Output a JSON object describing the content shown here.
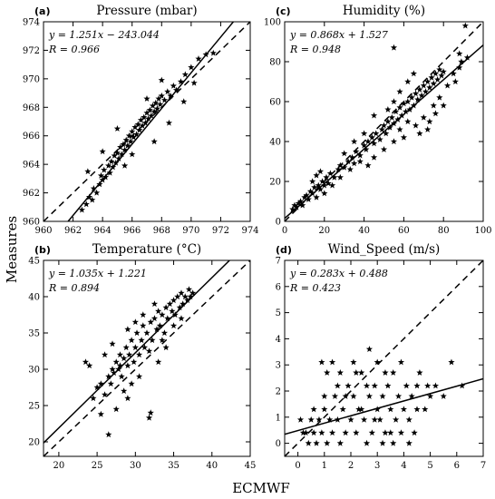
{
  "ylabel": "Measures",
  "xlabel": "ECMWF",
  "chart_data": [
    {
      "type": "scatter",
      "letter": "(a)",
      "title": "Pressure (mbar)",
      "xlim": [
        960,
        974
      ],
      "ylim": [
        960,
        974
      ],
      "xticks": [
        960,
        962,
        964,
        966,
        968,
        970,
        972,
        974
      ],
      "yticks": [
        960,
        962,
        964,
        966,
        968,
        970,
        972,
        974
      ],
      "fit": {
        "slope": 1.251,
        "intercept": -243.044
      },
      "equation": "y = 1.251x − 243.044",
      "r_text": "R = 0.966",
      "points": [
        [
          962.6,
          960.8
        ],
        [
          962.9,
          961.2
        ],
        [
          963.1,
          961.7
        ],
        [
          963.3,
          961.5
        ],
        [
          963.4,
          962.3
        ],
        [
          963.6,
          962.0
        ],
        [
          963.8,
          962.6
        ],
        [
          963.9,
          963.2
        ],
        [
          964.0,
          962.9
        ],
        [
          964.1,
          963.6
        ],
        [
          964.2,
          963.1
        ],
        [
          964.4,
          963.9
        ],
        [
          964.5,
          963.4
        ],
        [
          964.6,
          964.2
        ],
        [
          964.7,
          963.8
        ],
        [
          964.8,
          964.6
        ],
        [
          964.9,
          964.1
        ],
        [
          965.0,
          964.8
        ],
        [
          965.1,
          964.4
        ],
        [
          965.2,
          965.2
        ],
        [
          965.3,
          964.7
        ],
        [
          965.4,
          965.4
        ],
        [
          965.5,
          965.0
        ],
        [
          965.6,
          965.7
        ],
        [
          965.7,
          965.3
        ],
        [
          965.8,
          966.0
        ],
        [
          965.9,
          965.6
        ],
        [
          966.0,
          966.3
        ],
        [
          966.1,
          965.9
        ],
        [
          966.2,
          966.6
        ],
        [
          966.3,
          966.1
        ],
        [
          966.4,
          966.8
        ],
        [
          966.5,
          966.4
        ],
        [
          966.6,
          967.1
        ],
        [
          966.7,
          966.7
        ],
        [
          966.8,
          967.3
        ],
        [
          966.9,
          966.9
        ],
        [
          967.0,
          967.6
        ],
        [
          967.1,
          967.2
        ],
        [
          967.2,
          967.8
        ],
        [
          967.3,
          967.4
        ],
        [
          967.4,
          968.1
        ],
        [
          967.5,
          967.7
        ],
        [
          967.6,
          968.3
        ],
        [
          967.7,
          967.9
        ],
        [
          967.8,
          968.6
        ],
        [
          967.9,
          968.2
        ],
        [
          968.0,
          968.8
        ],
        [
          968.2,
          968.5
        ],
        [
          968.4,
          969.1
        ],
        [
          968.6,
          968.8
        ],
        [
          968.8,
          969.5
        ],
        [
          969.0,
          969.2
        ],
        [
          969.3,
          969.8
        ],
        [
          969.6,
          970.3
        ],
        [
          970.0,
          970.8
        ],
        [
          970.5,
          971.4
        ],
        [
          971.0,
          971.7
        ],
        [
          971.5,
          971.8
        ],
        [
          967.5,
          965.6
        ],
        [
          968.5,
          966.9
        ],
        [
          965.0,
          966.5
        ],
        [
          964.0,
          964.9
        ],
        [
          969.5,
          968.4
        ],
        [
          966.0,
          964.7
        ],
        [
          963.0,
          963.5
        ],
        [
          967.0,
          968.6
        ],
        [
          968.0,
          969.9
        ],
        [
          970.2,
          969.7
        ],
        [
          965.5,
          963.9
        ]
      ]
    },
    {
      "type": "scatter",
      "letter": "(c)",
      "title": "Humidity (%)",
      "xlim": [
        0,
        100
      ],
      "ylim": [
        0,
        100
      ],
      "xticks": [
        0,
        20,
        40,
        60,
        80,
        100
      ],
      "yticks": [
        0,
        20,
        40,
        60,
        80,
        100
      ],
      "fit": {
        "slope": 0.868,
        "intercept": 1.527
      },
      "equation": "y = 0.868x + 1.527",
      "r_text": "R = 0.948",
      "points": [
        [
          4,
          6
        ],
        [
          5,
          8
        ],
        [
          6,
          7
        ],
        [
          7,
          9
        ],
        [
          8,
          10
        ],
        [
          9,
          8
        ],
        [
          10,
          12
        ],
        [
          11,
          13
        ],
        [
          12,
          11
        ],
        [
          13,
          15
        ],
        [
          14,
          14
        ],
        [
          15,
          17
        ],
        [
          16,
          12
        ],
        [
          17,
          18
        ],
        [
          18,
          16
        ],
        [
          19,
          20
        ],
        [
          20,
          18
        ],
        [
          21,
          22
        ],
        [
          22,
          19
        ],
        [
          23,
          24
        ],
        [
          14,
          20
        ],
        [
          16,
          23
        ],
        [
          18,
          25
        ],
        [
          25,
          22
        ],
        [
          27,
          26
        ],
        [
          28,
          28
        ],
        [
          30,
          27
        ],
        [
          32,
          30
        ],
        [
          34,
          32
        ],
        [
          35,
          29
        ],
        [
          36,
          35
        ],
        [
          38,
          33
        ],
        [
          40,
          38
        ],
        [
          41,
          36
        ],
        [
          42,
          40
        ],
        [
          44,
          42
        ],
        [
          45,
          39
        ],
        [
          46,
          44
        ],
        [
          48,
          41
        ],
        [
          49,
          46
        ],
        [
          50,
          48
        ],
        [
          51,
          44
        ],
        [
          52,
          50
        ],
        [
          53,
          47
        ],
        [
          54,
          52
        ],
        [
          55,
          49
        ],
        [
          56,
          55
        ],
        [
          57,
          51
        ],
        [
          58,
          57
        ],
        [
          59,
          53
        ],
        [
          60,
          59
        ],
        [
          61,
          55
        ],
        [
          62,
          60
        ],
        [
          63,
          56
        ],
        [
          64,
          62
        ],
        [
          65,
          58
        ],
        [
          66,
          64
        ],
        [
          67,
          61
        ],
        [
          68,
          66
        ],
        [
          69,
          63
        ],
        [
          70,
          68
        ],
        [
          71,
          65
        ],
        [
          72,
          70
        ],
        [
          73,
          67
        ],
        [
          74,
          72
        ],
        [
          75,
          69
        ],
        [
          76,
          74
        ],
        [
          77,
          71
        ],
        [
          78,
          76
        ],
        [
          79,
          73
        ],
        [
          80,
          75
        ],
        [
          62,
          70
        ],
        [
          65,
          74
        ],
        [
          58,
          65
        ],
        [
          55,
          60
        ],
        [
          52,
          56
        ],
        [
          45,
          53
        ],
        [
          40,
          44
        ],
        [
          35,
          40
        ],
        [
          30,
          34
        ],
        [
          66,
          48
        ],
        [
          70,
          52
        ],
        [
          75,
          58
        ],
        [
          72,
          46
        ],
        [
          68,
          44
        ],
        [
          60,
          42
        ],
        [
          55,
          40
        ],
        [
          50,
          36
        ],
        [
          45,
          32
        ],
        [
          42,
          28
        ],
        [
          38,
          30
        ],
        [
          33,
          26
        ],
        [
          28,
          22
        ],
        [
          24,
          18
        ],
        [
          20,
          14
        ],
        [
          55,
          87
        ],
        [
          88,
          77
        ],
        [
          89,
          80
        ],
        [
          88,
          84
        ],
        [
          92,
          82
        ],
        [
          91,
          98
        ],
        [
          82,
          68
        ],
        [
          85,
          74
        ],
        [
          86,
          70
        ],
        [
          78,
          62
        ],
        [
          80,
          58
        ],
        [
          76,
          54
        ],
        [
          73,
          50
        ],
        [
          62,
          50
        ],
        [
          58,
          46
        ]
      ]
    },
    {
      "type": "scatter",
      "letter": "(b)",
      "title": "Temperature (°C)",
      "xlim": [
        18,
        45
      ],
      "ylim": [
        18,
        45
      ],
      "xticks": [
        20,
        25,
        30,
        35,
        40,
        45
      ],
      "yticks": [
        20,
        25,
        30,
        35,
        40,
        45
      ],
      "fit": {
        "slope": 1.035,
        "intercept": 1.221
      },
      "equation": "y = 1.035x + 1.221",
      "r_text": "R = 0.894",
      "points": [
        [
          24.5,
          26.0
        ],
        [
          25.0,
          27.5
        ],
        [
          25.5,
          28.0
        ],
        [
          26.0,
          26.5
        ],
        [
          26.5,
          29.0
        ],
        [
          26.8,
          28.0
        ],
        [
          27.0,
          30.0
        ],
        [
          27.2,
          29.5
        ],
        [
          27.5,
          31.0
        ],
        [
          27.8,
          30.0
        ],
        [
          28.0,
          32.0
        ],
        [
          28.2,
          29.0
        ],
        [
          28.5,
          31.5
        ],
        [
          28.8,
          33.0
        ],
        [
          29.0,
          30.5
        ],
        [
          29.2,
          32.0
        ],
        [
          29.5,
          34.0
        ],
        [
          29.8,
          31.0
        ],
        [
          30.0,
          33.0
        ],
        [
          30.2,
          35.0
        ],
        [
          30.5,
          32.0
        ],
        [
          30.8,
          34.0
        ],
        [
          31.0,
          36.0
        ],
        [
          31.2,
          33.0
        ],
        [
          31.5,
          35.0
        ],
        [
          31.8,
          32.5
        ],
        [
          32.0,
          36.5
        ],
        [
          32.2,
          34.0
        ],
        [
          32.5,
          37.0
        ],
        [
          32.8,
          35.5
        ],
        [
          33.0,
          38.0
        ],
        [
          33.2,
          36.0
        ],
        [
          33.5,
          37.5
        ],
        [
          33.8,
          35.0
        ],
        [
          34.0,
          38.5
        ],
        [
          34.2,
          37.0
        ],
        [
          34.5,
          39.0
        ],
        [
          34.8,
          38.0
        ],
        [
          35.0,
          39.5
        ],
        [
          35.2,
          37.5
        ],
        [
          35.5,
          40.0
        ],
        [
          35.8,
          38.5
        ],
        [
          36.0,
          40.5
        ],
        [
          36.2,
          39.0
        ],
        [
          36.5,
          40.0
        ],
        [
          36.8,
          39.5
        ],
        [
          37.0,
          41.0
        ],
        [
          37.2,
          40.0
        ],
        [
          37.5,
          40.5
        ],
        [
          32.0,
          24.0
        ],
        [
          31.8,
          23.3
        ],
        [
          29.0,
          26.0
        ],
        [
          28.5,
          27.0
        ],
        [
          30.5,
          29.0
        ],
        [
          33.0,
          31.0
        ],
        [
          34.0,
          33.0
        ],
        [
          27.0,
          33.5
        ],
        [
          26.0,
          32.0
        ],
        [
          29.0,
          35.5
        ],
        [
          31.0,
          37.5
        ],
        [
          25.5,
          23.8
        ],
        [
          26.5,
          21.0
        ],
        [
          27.5,
          24.5
        ],
        [
          23.5,
          31.0
        ],
        [
          24.0,
          30.5
        ],
        [
          30.0,
          36.5
        ],
        [
          32.5,
          39.0
        ],
        [
          35.0,
          36.0
        ],
        [
          36.0,
          37.0
        ],
        [
          29.5,
          28.0
        ],
        [
          28.0,
          30.5
        ],
        [
          33.5,
          34.0
        ]
      ]
    },
    {
      "type": "scatter",
      "letter": "(d)",
      "title": "Wind_Speed (m/s)",
      "xlim": [
        -0.5,
        7
      ],
      "ylim": [
        -0.5,
        7
      ],
      "xticks": [
        0,
        1,
        2,
        3,
        4,
        5,
        6,
        7
      ],
      "yticks": [
        0,
        1,
        2,
        3,
        4,
        5,
        6,
        7
      ],
      "fit": {
        "slope": 0.283,
        "intercept": 0.488
      },
      "equation": "y = 0.283x + 0.488",
      "r_text": "R = 0.423",
      "points": [
        [
          0.1,
          0.9
        ],
        [
          0.2,
          0.4
        ],
        [
          0.3,
          0.4
        ],
        [
          0.5,
          0.9
        ],
        [
          0.6,
          0.4
        ],
        [
          0.7,
          0.0
        ],
        [
          0.8,
          0.9
        ],
        [
          0.9,
          0.4
        ],
        [
          1.0,
          1.3
        ],
        [
          1.1,
          0.0
        ],
        [
          1.2,
          0.9
        ],
        [
          1.3,
          0.4
        ],
        [
          1.4,
          1.8
        ],
        [
          1.5,
          0.9
        ],
        [
          1.6,
          0.0
        ],
        [
          1.7,
          1.3
        ],
        [
          1.8,
          0.4
        ],
        [
          1.9,
          2.2
        ],
        [
          2.0,
          0.9
        ],
        [
          2.1,
          1.8
        ],
        [
          2.2,
          0.4
        ],
        [
          2.3,
          1.3
        ],
        [
          2.4,
          2.7
        ],
        [
          2.5,
          0.9
        ],
        [
          2.6,
          0.0
        ],
        [
          2.7,
          1.8
        ],
        [
          2.8,
          0.4
        ],
        [
          2.9,
          2.2
        ],
        [
          3.0,
          1.3
        ],
        [
          3.1,
          0.9
        ],
        [
          3.2,
          1.8
        ],
        [
          3.3,
          0.4
        ],
        [
          3.4,
          2.2
        ],
        [
          3.5,
          1.3
        ],
        [
          3.6,
          0.0
        ],
        [
          3.7,
          0.9
        ],
        [
          3.8,
          1.8
        ],
        [
          3.9,
          0.4
        ],
        [
          4.0,
          1.3
        ],
        [
          4.1,
          2.2
        ],
        [
          4.2,
          0.9
        ],
        [
          4.3,
          1.8
        ],
        [
          4.4,
          0.4
        ],
        [
          4.5,
          1.3
        ],
        [
          0.9,
          3.1
        ],
        [
          1.1,
          2.7
        ],
        [
          1.3,
          3.1
        ],
        [
          1.6,
          2.7
        ],
        [
          2.1,
          3.1
        ],
        [
          2.7,
          3.6
        ],
        [
          3.0,
          3.1
        ],
        [
          3.3,
          2.7
        ],
        [
          3.9,
          3.1
        ],
        [
          4.5,
          2.2
        ],
        [
          4.9,
          2.2
        ],
        [
          5.2,
          2.2
        ],
        [
          5.5,
          1.8
        ],
        [
          5.8,
          3.1
        ],
        [
          6.2,
          2.2
        ],
        [
          5.0,
          1.8
        ],
        [
          4.6,
          2.7
        ],
        [
          4.8,
          1.3
        ],
        [
          0.4,
          0.0
        ],
        [
          0.6,
          1.3
        ],
        [
          1.0,
          1.8
        ],
        [
          1.5,
          2.2
        ],
        [
          2.2,
          2.7
        ],
        [
          2.6,
          2.2
        ],
        [
          3.2,
          0.0
        ],
        [
          3.6,
          2.7
        ],
        [
          4.2,
          0.0
        ],
        [
          1.8,
          1.8
        ],
        [
          2.4,
          1.3
        ],
        [
          2.9,
          0.9
        ],
        [
          3.5,
          0.4
        ]
      ]
    }
  ]
}
